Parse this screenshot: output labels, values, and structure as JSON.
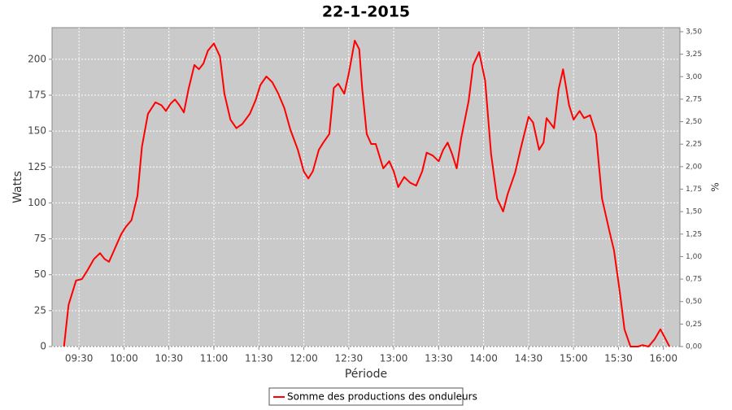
{
  "chart_data": {
    "type": "line",
    "title": "22-1-2015",
    "x_label": "Période",
    "y_label": "Watts",
    "y2_label": "%",
    "x": [
      "09:20",
      "09:23",
      "09:28",
      "09:32",
      "09:35",
      "09:40",
      "09:44",
      "09:47",
      "09:50",
      "09:53",
      "09:58",
      "10:01",
      "10:05",
      "10:09",
      "10:12",
      "10:16",
      "10:21",
      "10:25",
      "10:28",
      "10:31",
      "10:34",
      "10:37",
      "10:40",
      "10:43",
      "10:47",
      "10:50",
      "10:53",
      "10:56",
      "11:00",
      "11:04",
      "11:07",
      "11:11",
      "11:15",
      "11:19",
      "11:24",
      "11:28",
      "11:31",
      "11:35",
      "11:39",
      "11:43",
      "11:47",
      "11:51",
      "11:56",
      "12:00",
      "12:03",
      "12:06",
      "12:10",
      "12:13",
      "12:17",
      "12:20",
      "12:23",
      "12:27",
      "12:30",
      "12:34",
      "12:37",
      "12:39",
      "12:42",
      "12:45",
      "12:48",
      "12:53",
      "12:57",
      "13:00",
      "13:03",
      "13:07",
      "13:11",
      "13:15",
      "13:19",
      "13:22",
      "13:26",
      "13:30",
      "13:33",
      "13:36",
      "13:39",
      "13:42",
      "13:45",
      "13:50",
      "13:53",
      "13:57",
      "14:01",
      "14:05",
      "14:09",
      "14:13",
      "14:16",
      "14:21",
      "14:25",
      "14:30",
      "14:33",
      "14:37",
      "14:40",
      "14:42",
      "14:47",
      "14:50",
      "14:53",
      "14:57",
      "15:00",
      "15:04",
      "15:07",
      "15:11",
      "15:15",
      "15:19",
      "15:24",
      "15:27",
      "15:31",
      "15:34",
      "15:38",
      "15:43",
      "15:46",
      "15:50",
      "15:54",
      "15:58",
      "16:01",
      "16:04"
    ],
    "series": [
      {
        "name": "Somme des productions des onduleurs",
        "color": "#ff0000",
        "values": [
          0,
          29,
          46,
          47,
          52,
          61,
          65,
          61,
          59,
          66,
          78,
          83,
          88,
          105,
          139,
          162,
          170,
          168,
          164,
          169,
          172,
          168,
          163,
          179,
          196,
          193,
          197,
          206,
          211,
          202,
          176,
          158,
          152,
          155,
          162,
          172,
          182,
          188,
          184,
          176,
          166,
          151,
          137,
          122,
          117,
          122,
          137,
          142,
          148,
          180,
          183,
          176,
          190,
          213,
          207,
          179,
          148,
          141,
          141,
          124,
          129,
          122,
          111,
          118,
          114,
          112,
          122,
          135,
          133,
          129,
          137,
          142,
          134,
          124,
          145,
          171,
          196,
          205,
          185,
          134,
          103,
          94,
          106,
          121,
          139,
          160,
          156,
          137,
          142,
          159,
          152,
          179,
          193,
          168,
          158,
          164,
          159,
          161,
          148,
          103,
          80,
          67,
          37,
          12,
          0,
          0,
          1,
          0,
          5,
          12,
          6,
          0
        ]
      }
    ],
    "xlim": [
      "09:12",
      "16:11"
    ],
    "xticks": [
      "09:30",
      "10:00",
      "10:30",
      "11:00",
      "11:30",
      "12:00",
      "12:30",
      "13:00",
      "13:30",
      "14:00",
      "14:30",
      "15:00",
      "15:30",
      "16:00"
    ],
    "ylim": [
      0,
      222
    ],
    "yticks": [
      0,
      25,
      50,
      75,
      100,
      125,
      150,
      175,
      200
    ],
    "y2lim": [
      0,
      3.545
    ],
    "y2ticks": [
      {
        "value": 0,
        "label": "0,00"
      },
      {
        "value": 0.25,
        "label": "0,25"
      },
      {
        "value": 0.5,
        "label": "0,50"
      },
      {
        "value": 0.75,
        "label": "0,75"
      },
      {
        "value": 1,
        "label": "1,00"
      },
      {
        "value": 1.25,
        "label": "1,25"
      },
      {
        "value": 1.5,
        "label": "1,50"
      },
      {
        "value": 1.75,
        "label": "1,75"
      },
      {
        "value": 2,
        "label": "2,00"
      },
      {
        "value": 2.25,
        "label": "2,25"
      },
      {
        "value": 2.5,
        "label": "2,50"
      },
      {
        "value": 2.75,
        "label": "2,75"
      },
      {
        "value": 3,
        "label": "3,00"
      },
      {
        "value": 3.25,
        "label": "3,25"
      },
      {
        "value": 3.5,
        "label": "3,50"
      }
    ],
    "grid": true,
    "legend": "bottom"
  }
}
